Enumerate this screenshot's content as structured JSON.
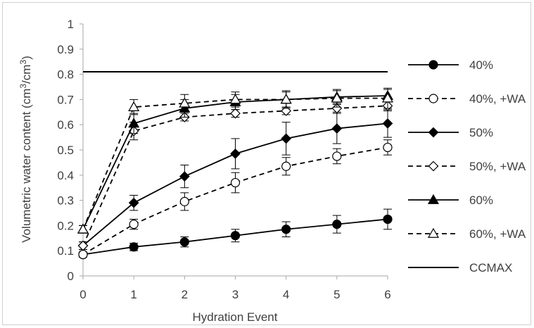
{
  "chart_data": {
    "type": "line",
    "x": [
      0,
      1,
      2,
      3,
      4,
      5,
      6
    ],
    "xlabel": "Hydration Event",
    "ylabel_main": "Volumetric water content (cm",
    "ylabel_sup1": "3",
    "ylabel_mid": "/cm",
    "ylabel_sup2": "3",
    "ylabel_end": ")",
    "xlim": [
      0,
      6
    ],
    "ylim": [
      0,
      1
    ],
    "x_ticks": [
      "0",
      "1",
      "2",
      "3",
      "4",
      "5",
      "6"
    ],
    "y_ticks": [
      "0",
      "0.1",
      "0.2",
      "0.3",
      "0.4",
      "0.5",
      "0.6",
      "0.7",
      "0.8",
      "0.9",
      "1"
    ],
    "legend_position": "right",
    "series": [
      {
        "name": "40%",
        "marker": "circle",
        "filled": true,
        "dashed": false,
        "values": [
          0.085,
          0.115,
          0.135,
          0.16,
          0.185,
          0.205,
          0.225
        ],
        "errors": [
          0.01,
          0.015,
          0.02,
          0.025,
          0.03,
          0.035,
          0.04
        ]
      },
      {
        "name": "40%, +WA",
        "marker": "circle",
        "filled": false,
        "dashed": true,
        "values": [
          0.085,
          0.205,
          0.295,
          0.37,
          0.435,
          0.475,
          0.51
        ],
        "errors": [
          0.01,
          0.02,
          0.035,
          0.04,
          0.035,
          0.03,
          0.03
        ]
      },
      {
        "name": "50%",
        "marker": "diamond",
        "filled": true,
        "dashed": false,
        "values": [
          0.12,
          0.29,
          0.395,
          0.485,
          0.545,
          0.585,
          0.605
        ],
        "errors": [
          0.015,
          0.03,
          0.045,
          0.06,
          0.065,
          0.06,
          0.055
        ]
      },
      {
        "name": "50%, +WA",
        "marker": "diamond",
        "filled": false,
        "dashed": true,
        "values": [
          0.12,
          0.575,
          0.63,
          0.645,
          0.655,
          0.665,
          0.675
        ],
        "errors": [
          0.015,
          0.035,
          0.015,
          0.015,
          0.015,
          0.015,
          0.02
        ]
      },
      {
        "name": "60%",
        "marker": "triangle",
        "filled": true,
        "dashed": false,
        "values": [
          0.185,
          0.605,
          0.665,
          0.69,
          0.7,
          0.71,
          0.715
        ],
        "errors": [
          0.015,
          0.04,
          0.035,
          0.03,
          0.03,
          0.025,
          0.025
        ]
      },
      {
        "name": "60%, +WA",
        "marker": "triangle",
        "filled": false,
        "dashed": true,
        "values": [
          0.185,
          0.67,
          0.685,
          0.7,
          0.7,
          0.705,
          0.705
        ],
        "errors": [
          0.015,
          0.03,
          0.035,
          0.03,
          0.035,
          0.035,
          0.04
        ]
      },
      {
        "name": "CCMAX",
        "marker": "none",
        "filled": false,
        "dashed": false,
        "values": [
          0.81,
          0.81,
          0.81,
          0.81,
          0.81,
          0.81,
          0.81
        ],
        "errors": null
      }
    ]
  }
}
